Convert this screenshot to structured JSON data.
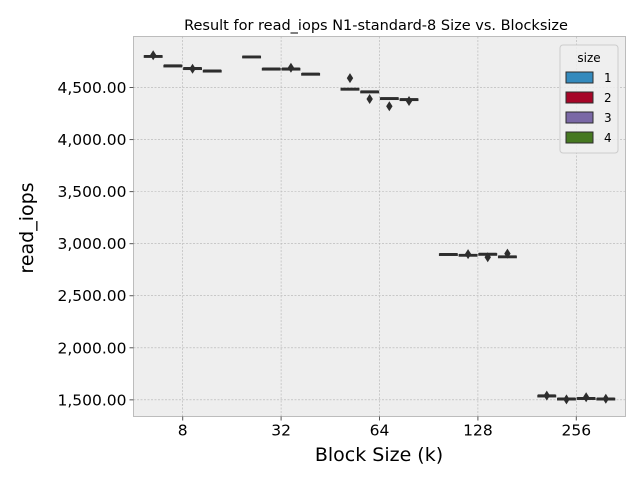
{
  "chart_data": {
    "type": "box",
    "title": "Result for read_iops N1-standard-8 Size vs. Blocksize",
    "xlabel": "Block Size (k)",
    "ylabel": "read_iops",
    "categories": [
      "8",
      "32",
      "64",
      "128",
      "256"
    ],
    "ylim": [
      1340,
      4990
    ],
    "yticks": [
      1500,
      2000,
      2500,
      3000,
      3500,
      4000,
      4500
    ],
    "ytick_labels": [
      "1,500.00",
      "2,000.00",
      "2,500.00",
      "3,000.00",
      "3,500.00",
      "4,000.00",
      "4,500.00"
    ],
    "grid": true,
    "legend": {
      "title": "size",
      "position": "top-right",
      "entries": [
        {
          "label": "1",
          "color": "#348abd"
        },
        {
          "label": "2",
          "color": "#a60628"
        },
        {
          "label": "3",
          "color": "#7a68a6"
        },
        {
          "label": "4",
          "color": "#467821"
        }
      ]
    },
    "series": [
      {
        "name": "1",
        "color": "#348abd",
        "boxes": [
          {
            "median": 4800,
            "q1": 4795,
            "q3": 4805,
            "outliers": [
              4810
            ]
          },
          {
            "median": 4795,
            "q1": 4790,
            "q3": 4800,
            "outliers": []
          },
          {
            "median": 4485,
            "q1": 4480,
            "q3": 4490,
            "outliers": [
              4590
            ]
          },
          {
            "median": 2898,
            "q1": 2895,
            "q3": 2902,
            "outliers": []
          },
          {
            "median": 1540,
            "q1": 1536,
            "q3": 1543,
            "outliers": [
              1540
            ]
          }
        ]
      },
      {
        "name": "2",
        "color": "#a60628",
        "boxes": [
          {
            "median": 4710,
            "q1": 4707,
            "q3": 4713,
            "outliers": []
          },
          {
            "median": 4680,
            "q1": 4677,
            "q3": 4683,
            "outliers": []
          },
          {
            "median": 4460,
            "q1": 4456,
            "q3": 4464,
            "outliers": [
              4390
            ]
          },
          {
            "median": 2890,
            "q1": 2885,
            "q3": 2895,
            "outliers": [
              2900
            ]
          },
          {
            "median": 1510,
            "q1": 1506,
            "q3": 1514,
            "outliers": [
              1505
            ]
          }
        ]
      },
      {
        "name": "3",
        "color": "#7a68a6",
        "boxes": [
          {
            "median": 4685,
            "q1": 4682,
            "q3": 4688,
            "outliers": [
              4680
            ]
          },
          {
            "median": 4680,
            "q1": 4677,
            "q3": 4683,
            "outliers": [
              4690
            ]
          },
          {
            "median": 4395,
            "q1": 4390,
            "q3": 4400,
            "outliers": [
              4320
            ]
          },
          {
            "median": 2900,
            "q1": 2896,
            "q3": 2904,
            "outliers": [
              2870
            ]
          },
          {
            "median": 1515,
            "q1": 1511,
            "q3": 1519,
            "outliers": [
              1525
            ]
          }
        ]
      },
      {
        "name": "4",
        "color": "#467821",
        "boxes": [
          {
            "median": 4660,
            "q1": 4656,
            "q3": 4664,
            "outliers": []
          },
          {
            "median": 4630,
            "q1": 4626,
            "q3": 4634,
            "outliers": []
          },
          {
            "median": 4385,
            "q1": 4380,
            "q3": 4390,
            "outliers": [
              4370
            ]
          },
          {
            "median": 2875,
            "q1": 2870,
            "q3": 2880,
            "outliers": [
              2905
            ]
          },
          {
            "median": 1510,
            "q1": 1506,
            "q3": 1514,
            "outliers": [
              1510
            ]
          }
        ]
      }
    ]
  }
}
